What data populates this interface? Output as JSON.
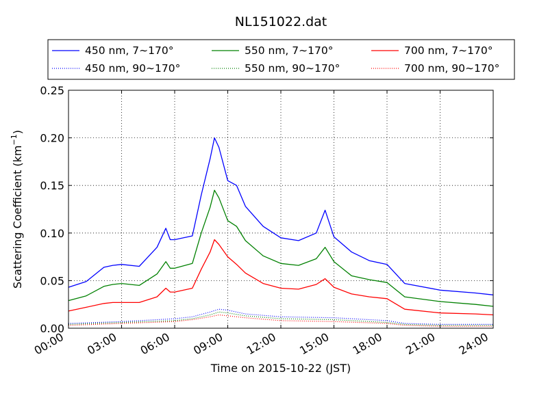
{
  "chart_data": {
    "type": "line",
    "title": "NL151022.dat",
    "xlabel": "Time on 2015-10-22 (JST)",
    "ylabel": "Scattering Coefficient (km",
    "ylabel_superscript": "−1",
    "ylabel_close": ")",
    "xlim": [
      "00:00",
      "24:00"
    ],
    "ylim": [
      0,
      0.25
    ],
    "x_ticks": [
      "00:00",
      "03:00",
      "06:00",
      "09:00",
      "12:00",
      "15:00",
      "18:00",
      "21:00",
      "24:00"
    ],
    "y_ticks": [
      "0.00",
      "0.05",
      "0.10",
      "0.15",
      "0.20",
      "0.25"
    ],
    "grid": true,
    "legend_position": "top, above plot",
    "series": [
      {
        "name": "450 nm, 7∼170°",
        "color": "#0000ff",
        "style": "solid",
        "x": [
          "00:00",
          "01:00",
          "02:00",
          "02:30",
          "03:00",
          "04:00",
          "05:00",
          "05:30",
          "05:45",
          "06:00",
          "07:00",
          "07:30",
          "08:00",
          "08:15",
          "08:30",
          "09:00",
          "09:30",
          "10:00",
          "11:00",
          "12:00",
          "13:00",
          "14:00",
          "14:30",
          "15:00",
          "16:00",
          "17:00",
          "18:00",
          "19:00",
          "21:00",
          "23:00",
          "24:00"
        ],
        "y": [
          0.043,
          0.049,
          0.064,
          0.066,
          0.067,
          0.065,
          0.085,
          0.105,
          0.093,
          0.093,
          0.097,
          0.14,
          0.178,
          0.2,
          0.19,
          0.155,
          0.15,
          0.128,
          0.107,
          0.095,
          0.092,
          0.1,
          0.124,
          0.096,
          0.08,
          0.071,
          0.067,
          0.047,
          0.04,
          0.037,
          0.035
        ]
      },
      {
        "name": "550 nm, 7∼170°",
        "color": "#008000",
        "style": "solid",
        "x": [
          "00:00",
          "01:00",
          "02:00",
          "02:30",
          "03:00",
          "04:00",
          "05:00",
          "05:30",
          "05:45",
          "06:00",
          "07:00",
          "07:30",
          "08:00",
          "08:15",
          "08:30",
          "09:00",
          "09:30",
          "10:00",
          "11:00",
          "12:00",
          "13:00",
          "14:00",
          "14:30",
          "15:00",
          "16:00",
          "17:00",
          "18:00",
          "19:00",
          "21:00",
          "23:00",
          "24:00"
        ],
        "y": [
          0.029,
          0.034,
          0.044,
          0.046,
          0.047,
          0.045,
          0.057,
          0.07,
          0.063,
          0.063,
          0.068,
          0.1,
          0.127,
          0.145,
          0.137,
          0.113,
          0.107,
          0.092,
          0.076,
          0.068,
          0.066,
          0.073,
          0.085,
          0.07,
          0.055,
          0.051,
          0.048,
          0.033,
          0.028,
          0.025,
          0.023
        ]
      },
      {
        "name": "700 nm, 7∼170°",
        "color": "#ff0000",
        "style": "solid",
        "x": [
          "00:00",
          "01:00",
          "02:00",
          "02:30",
          "03:00",
          "04:00",
          "05:00",
          "05:30",
          "05:45",
          "06:00",
          "07:00",
          "07:30",
          "08:00",
          "08:15",
          "08:30",
          "09:00",
          "09:30",
          "10:00",
          "11:00",
          "12:00",
          "13:00",
          "14:00",
          "14:30",
          "15:00",
          "16:00",
          "17:00",
          "18:00",
          "19:00",
          "21:00",
          "23:00",
          "24:00"
        ],
        "y": [
          0.018,
          0.022,
          0.026,
          0.027,
          0.027,
          0.027,
          0.033,
          0.042,
          0.038,
          0.038,
          0.042,
          0.062,
          0.08,
          0.093,
          0.088,
          0.075,
          0.067,
          0.058,
          0.047,
          0.042,
          0.041,
          0.046,
          0.052,
          0.043,
          0.036,
          0.033,
          0.031,
          0.02,
          0.016,
          0.015,
          0.014
        ]
      },
      {
        "name": "450 nm, 90∼170°",
        "color": "#0000ff",
        "style": "dotted",
        "x": [
          "00:00",
          "03:00",
          "06:00",
          "07:00",
          "08:00",
          "08:30",
          "09:00",
          "10:00",
          "12:00",
          "15:00",
          "18:00",
          "19:00",
          "21:00",
          "24:00"
        ],
        "y": [
          0.005,
          0.007,
          0.01,
          0.012,
          0.017,
          0.02,
          0.019,
          0.015,
          0.012,
          0.011,
          0.008,
          0.005,
          0.004,
          0.004
        ]
      },
      {
        "name": "550 nm, 90∼170°",
        "color": "#008000",
        "style": "dotted",
        "x": [
          "00:00",
          "03:00",
          "06:00",
          "07:00",
          "08:00",
          "08:30",
          "09:00",
          "10:00",
          "12:00",
          "15:00",
          "18:00",
          "19:00",
          "21:00",
          "24:00"
        ],
        "y": [
          0.004,
          0.006,
          0.008,
          0.01,
          0.014,
          0.017,
          0.016,
          0.013,
          0.01,
          0.009,
          0.006,
          0.004,
          0.003,
          0.003
        ]
      },
      {
        "name": "700 nm, 90∼170°",
        "color": "#ff0000",
        "style": "dotted",
        "x": [
          "00:00",
          "03:00",
          "06:00",
          "07:00",
          "08:00",
          "08:30",
          "09:00",
          "10:00",
          "12:00",
          "15:00",
          "18:00",
          "19:00",
          "21:00",
          "24:00"
        ],
        "y": [
          0.003,
          0.005,
          0.007,
          0.009,
          0.012,
          0.014,
          0.013,
          0.011,
          0.008,
          0.007,
          0.005,
          0.003,
          0.002,
          0.002
        ]
      }
    ],
    "legend_order": [
      0,
      1,
      2,
      3,
      4,
      5
    ]
  }
}
